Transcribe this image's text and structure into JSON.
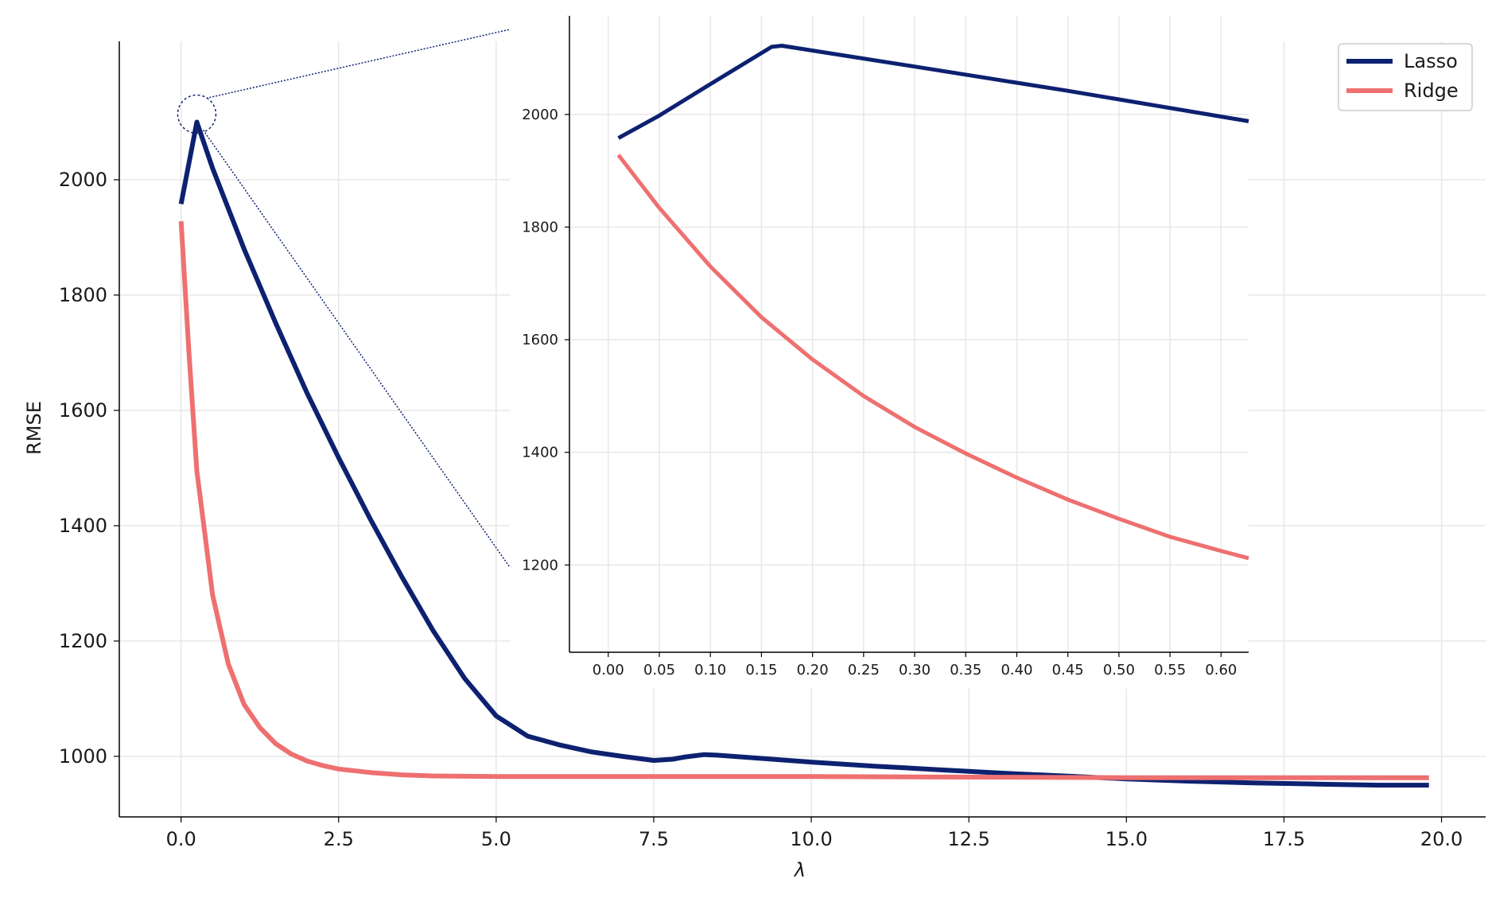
{
  "colors": {
    "lasso": "#0d2170",
    "ridge": "#ee7070",
    "grid": "#e7e7e7",
    "axis": "#000000",
    "connector": "#0d2170"
  },
  "chart_data": [
    {
      "type": "line",
      "xlabel": "λ",
      "ylabel": "RMSE",
      "xlim": [
        -0.98,
        20.7
      ],
      "ylim": [
        895,
        2240
      ],
      "xticks": [
        0.0,
        2.5,
        5.0,
        7.5,
        10.0,
        12.5,
        15.0,
        17.5,
        20.0
      ],
      "xtick_labels": [
        "0.0",
        "2.5",
        "5.0",
        "7.5",
        "10.0",
        "12.5",
        "15.0",
        "17.5",
        "20.0"
      ],
      "yticks": [
        1000,
        1200,
        1400,
        1600,
        1800,
        2000
      ],
      "ytick_labels": [
        "1000",
        "1200",
        "1400",
        "1600",
        "1800",
        "2000"
      ],
      "grid": true,
      "legend_position": "top-right",
      "series": [
        {
          "name": "Lasso",
          "color_key": "lasso",
          "x": [
            0.0,
            0.25,
            0.5,
            1.0,
            1.5,
            2.0,
            2.5,
            3.0,
            3.5,
            4.0,
            4.5,
            5.0,
            5.5,
            6.0,
            6.5,
            7.0,
            7.5,
            7.8,
            8.0,
            8.3,
            8.5,
            9.0,
            10.0,
            11.0,
            12.0,
            13.0,
            14.0,
            15.0,
            16.0,
            17.0,
            18.0,
            19.0,
            19.8
          ],
          "y": [
            1958,
            2100,
            2020,
            1880,
            1752,
            1630,
            1518,
            1412,
            1312,
            1218,
            1135,
            1070,
            1035,
            1020,
            1008,
            1000,
            993,
            995,
            999,
            1003,
            1002,
            998,
            990,
            983,
            977,
            971,
            966,
            961,
            957,
            954,
            952,
            950,
            950
          ]
        },
        {
          "name": "Ridge",
          "color_key": "ridge",
          "x": [
            0.0,
            0.125,
            0.25,
            0.375,
            0.5,
            0.75,
            1.0,
            1.25,
            1.5,
            1.75,
            2.0,
            2.25,
            2.5,
            3.0,
            3.5,
            4.0,
            5.0,
            7.5,
            10.0,
            12.5,
            15.0,
            17.5,
            19.8
          ],
          "y": [
            1928,
            1700,
            1495,
            1388,
            1280,
            1160,
            1090,
            1050,
            1022,
            1004,
            992,
            984,
            978,
            972,
            968,
            966,
            965,
            965,
            965,
            964,
            963,
            963,
            963
          ]
        }
      ]
    },
    {
      "type": "line",
      "inset": true,
      "xlim": [
        -0.038,
        0.627
      ],
      "ylim": [
        1045,
        2175
      ],
      "xticks": [
        0.0,
        0.05,
        0.1,
        0.15,
        0.2,
        0.25,
        0.3,
        0.35,
        0.4,
        0.45,
        0.5,
        0.55,
        0.6
      ],
      "xtick_labels": [
        "0.00",
        "0.05",
        "0.10",
        "0.15",
        "0.20",
        "0.25",
        "0.30",
        "0.35",
        "0.40",
        "0.45",
        "0.50",
        "0.55",
        "0.60"
      ],
      "yticks": [
        1200,
        1400,
        1600,
        1800,
        2000
      ],
      "ytick_labels": [
        "1200",
        "1400",
        "1600",
        "1800",
        "2000"
      ],
      "grid": true,
      "series": [
        {
          "name": "Lasso",
          "color_key": "lasso",
          "x": [
            0.01,
            0.05,
            0.1,
            0.16,
            0.17,
            0.3,
            0.45,
            0.627
          ],
          "y": [
            1958,
            1998,
            2054,
            2120,
            2122,
            2085,
            2042,
            1988
          ]
        },
        {
          "name": "Ridge",
          "color_key": "ridge",
          "x": [
            0.01,
            0.05,
            0.1,
            0.15,
            0.2,
            0.25,
            0.3,
            0.35,
            0.4,
            0.45,
            0.5,
            0.55,
            0.6,
            0.627
          ],
          "y": [
            1928,
            1834,
            1730,
            1640,
            1565,
            1500,
            1445,
            1398,
            1355,
            1316,
            1282,
            1250,
            1225,
            1212
          ]
        }
      ]
    }
  ]
}
